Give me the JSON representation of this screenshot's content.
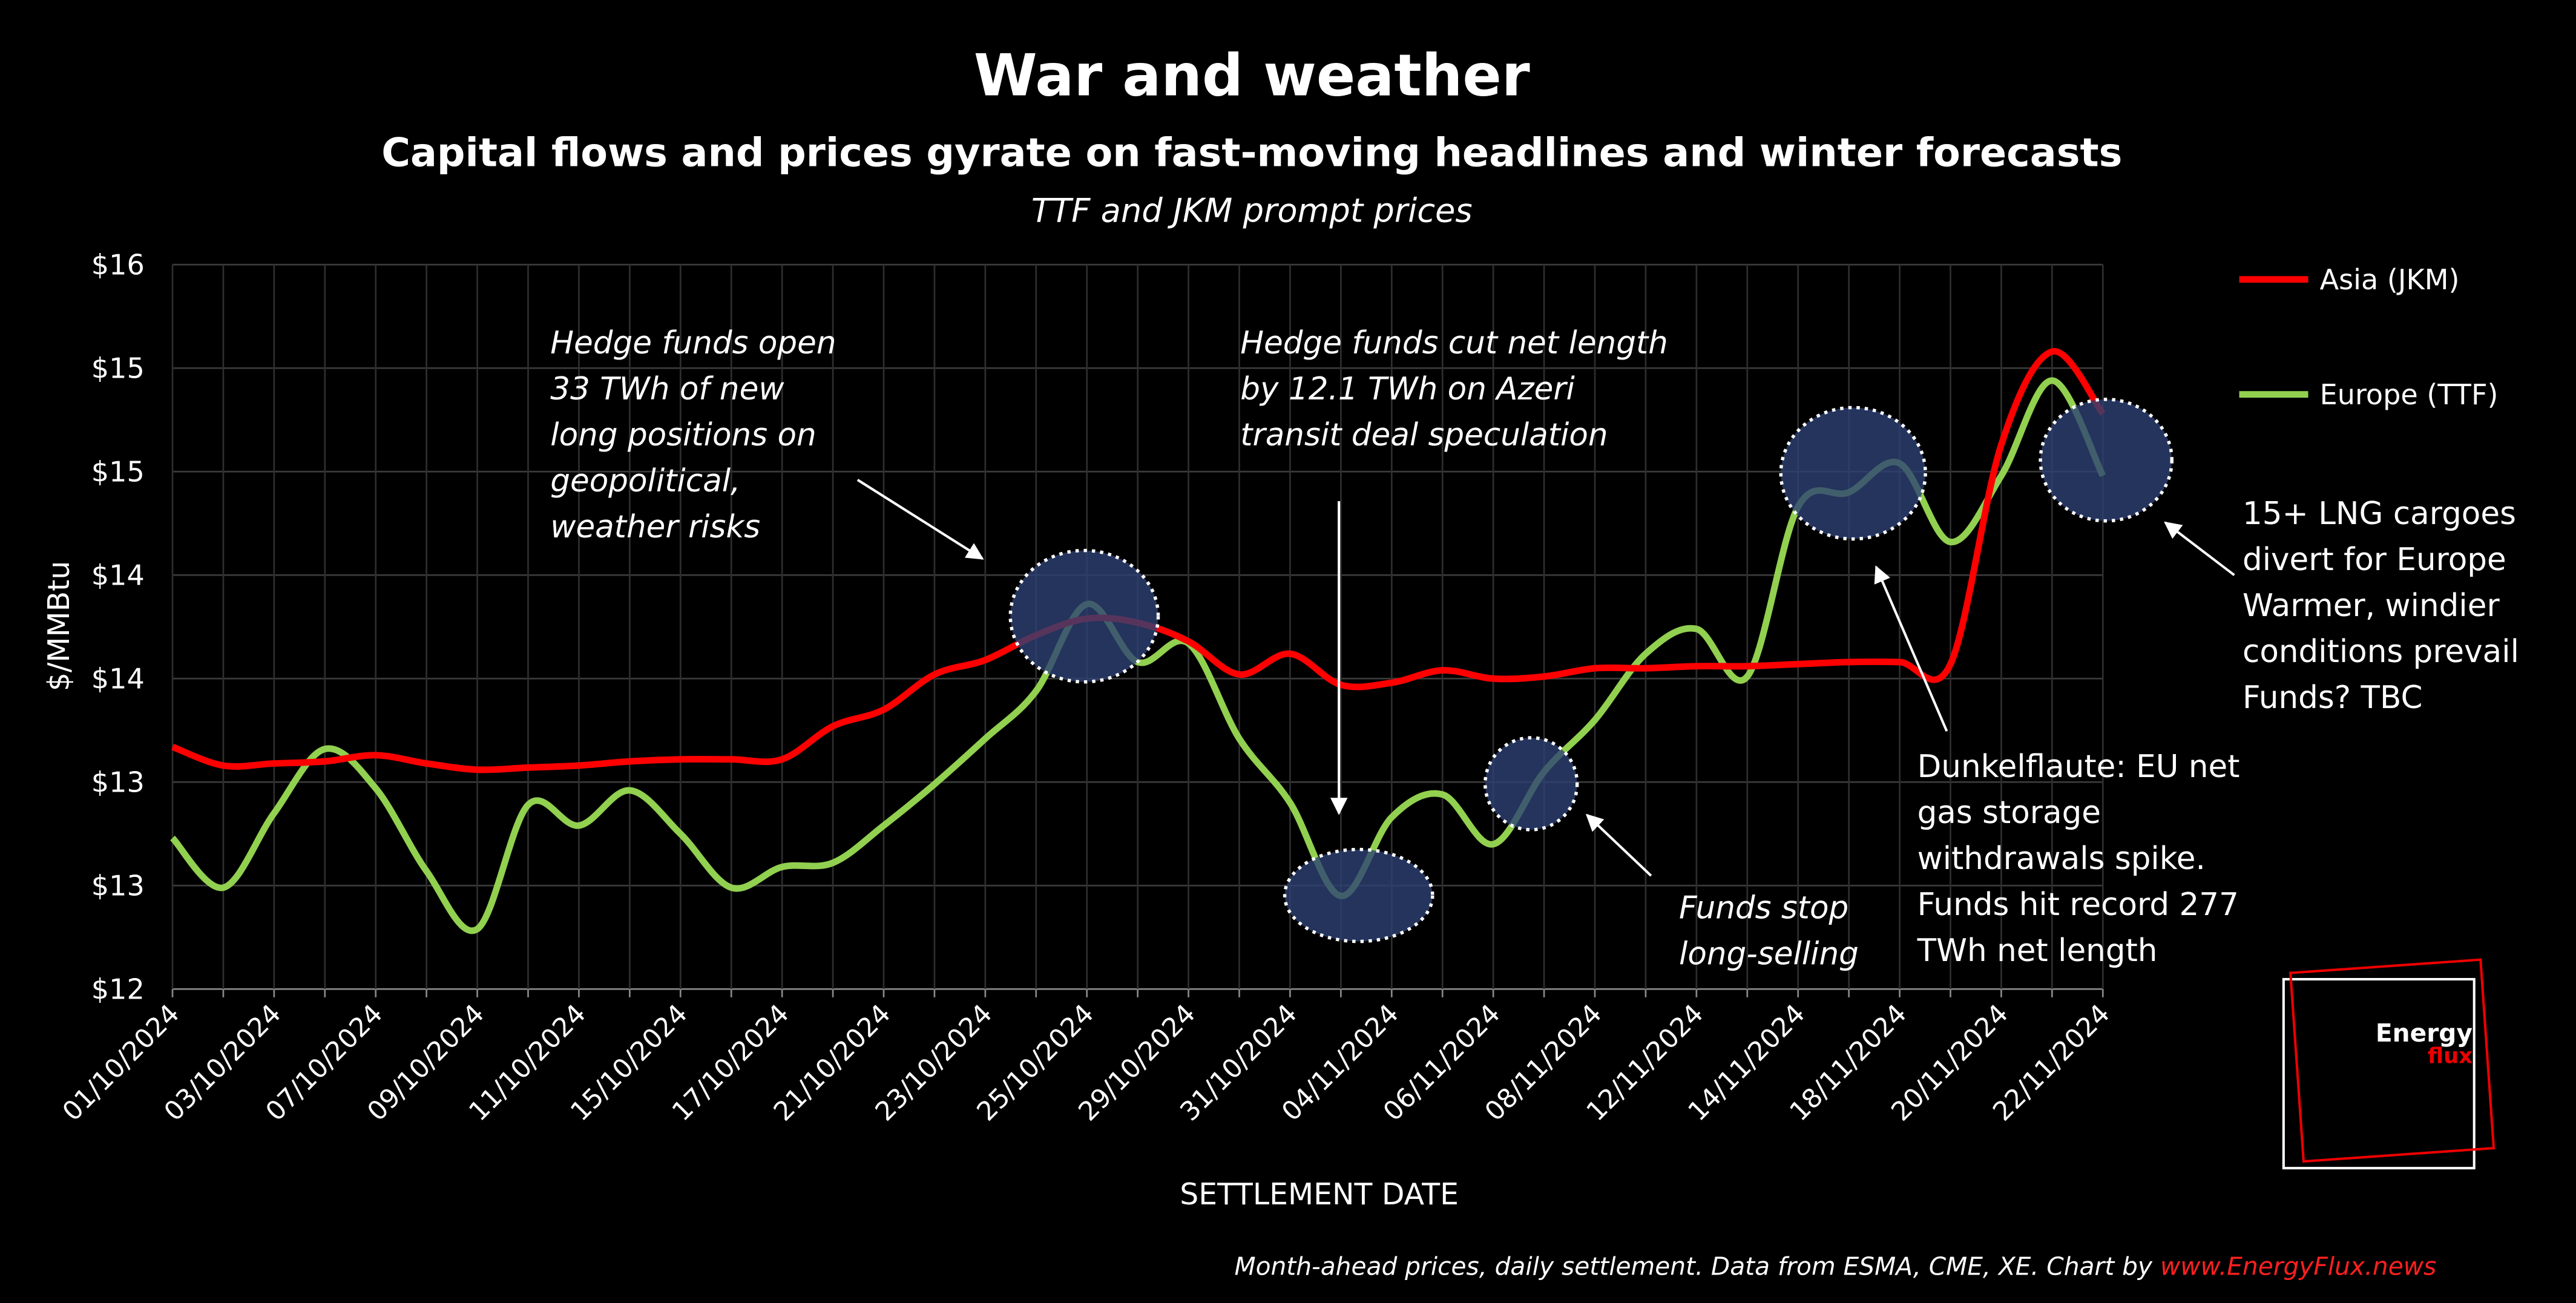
{
  "chart_data": {
    "type": "line",
    "title": "War and weather",
    "subtitle": "Capital flows and prices gyrate on fast-moving headlines and winter forecasts",
    "caption": "TTF and JKM prompt prices",
    "y_label": "$/MMBtu",
    "x_label": "SETTLEMENT DATE",
    "categories": [
      "01/10/2024",
      null,
      "03/10/2024",
      null,
      "07/10/2024",
      null,
      "09/10/2024",
      null,
      "11/10/2024",
      null,
      "15/10/2024",
      null,
      "17/10/2024",
      null,
      "21/10/2024",
      null,
      "23/10/2024",
      null,
      "25/10/2024",
      null,
      "29/10/2024",
      null,
      "31/10/2024",
      null,
      "04/11/2024",
      null,
      "06/11/2024",
      null,
      "08/11/2024",
      null,
      "12/11/2024",
      null,
      "14/11/2024",
      null,
      "18/11/2024",
      null,
      "20/11/2024",
      null,
      "22/11/2024"
    ],
    "series": [
      {
        "name": "Asia (JKM)",
        "color": "#ff0000",
        "values": [
          13.17,
          13.08,
          13.09,
          13.1,
          13.13,
          13.09,
          13.06,
          13.07,
          13.08,
          13.1,
          13.11,
          13.11,
          13.11,
          13.27,
          13.35,
          13.52,
          13.59,
          13.71,
          13.79,
          13.77,
          13.68,
          13.52,
          13.62,
          13.47,
          13.48,
          13.54,
          13.5,
          13.51,
          13.55,
          13.55,
          13.56,
          13.56,
          13.57,
          13.58,
          13.58,
          13.57,
          14.63,
          15.08,
          14.78
        ]
      },
      {
        "name": "Europe (TTF)",
        "color": "#92d050",
        "values": [
          12.73,
          12.49,
          12.85,
          13.16,
          12.97,
          12.57,
          12.29,
          12.89,
          12.79,
          12.96,
          12.75,
          12.49,
          12.59,
          12.61,
          12.79,
          12.99,
          13.21,
          13.44,
          13.86,
          13.58,
          13.67,
          13.21,
          12.9,
          12.45,
          12.83,
          12.94,
          12.7,
          13.05,
          13.3,
          13.62,
          13.74,
          13.51,
          14.33,
          14.4,
          14.54,
          14.16,
          14.48,
          14.94,
          14.48
        ]
      }
    ],
    "ylim": [
      12,
      15.5
    ],
    "yticks": [
      {
        "value": 12,
        "label": "$12"
      },
      {
        "value": 12.5,
        "label": "$13"
      },
      {
        "value": 13,
        "label": "$13"
      },
      {
        "value": 13.5,
        "label": "$14"
      },
      {
        "value": 14,
        "label": "$14"
      },
      {
        "value": 14.5,
        "label": "$15"
      },
      {
        "value": 15,
        "label": "$15"
      },
      {
        "value": 15.5,
        "label": "$16"
      }
    ],
    "grid": true,
    "legend": "right",
    "annotations": [
      {
        "lines": [
          "Hedge funds open",
          "33 TWh of new",
          "long positions on",
          "geopolitical,",
          "weather risks"
        ]
      },
      {
        "lines": [
          "Hedge funds cut net length",
          "by 12.1 TWh on Azeri",
          "transit deal speculation"
        ]
      },
      {
        "lines": [
          "Funds stop",
          "long-selling"
        ]
      },
      {
        "lines": [
          "Dunkelflaute: EU net",
          "gas storage",
          "withdrawals spike.",
          "Funds hit record 277",
          "TWh net length"
        ]
      },
      {
        "lines": [
          "15+ LNG cargoes",
          "divert for Europe",
          "Warmer, windier",
          "conditions prevail",
          "Funds? TBC"
        ]
      }
    ],
    "source": "Month-ahead prices, daily settlement. Data from ESMA, CME, XE. Chart by ",
    "source_link": "www.EnergyFlux.news",
    "logo": [
      "Energy",
      "flux"
    ]
  }
}
